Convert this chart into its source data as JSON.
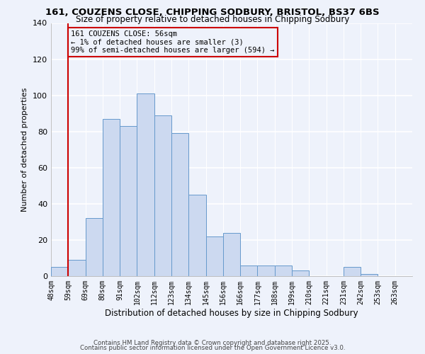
{
  "title1": "161, COUZENS CLOSE, CHIPPING SODBURY, BRISTOL, BS37 6BS",
  "title2": "Size of property relative to detached houses in Chipping Sodbury",
  "xlabel": "Distribution of detached houses by size in Chipping Sodbury",
  "ylabel": "Number of detached properties",
  "bin_labels": [
    "48sqm",
    "59sqm",
    "69sqm",
    "80sqm",
    "91sqm",
    "102sqm",
    "112sqm",
    "123sqm",
    "134sqm",
    "145sqm",
    "156sqm",
    "166sqm",
    "177sqm",
    "188sqm",
    "199sqm",
    "210sqm",
    "221sqm",
    "231sqm",
    "242sqm",
    "253sqm",
    "263sqm"
  ],
  "bar_heights": [
    5,
    9,
    32,
    87,
    83,
    101,
    89,
    79,
    45,
    22,
    24,
    6,
    6,
    6,
    3,
    0,
    0,
    5,
    1,
    0,
    0
  ],
  "bar_color": "#ccd9f0",
  "bar_edge_color": "#6699cc",
  "ylim": [
    0,
    140
  ],
  "yticks": [
    0,
    20,
    40,
    60,
    80,
    100,
    120,
    140
  ],
  "annotation_line1": "161 COUZENS CLOSE: 56sqm",
  "annotation_line2": "← 1% of detached houses are smaller (3)",
  "annotation_line3": "99% of semi-detached houses are larger (594) →",
  "vline_color": "#cc0000",
  "bg_color": "#eef2fb",
  "footer1": "Contains HM Land Registry data © Crown copyright and database right 2025.",
  "footer2": "Contains public sector information licensed under the Open Government Licence v3.0."
}
